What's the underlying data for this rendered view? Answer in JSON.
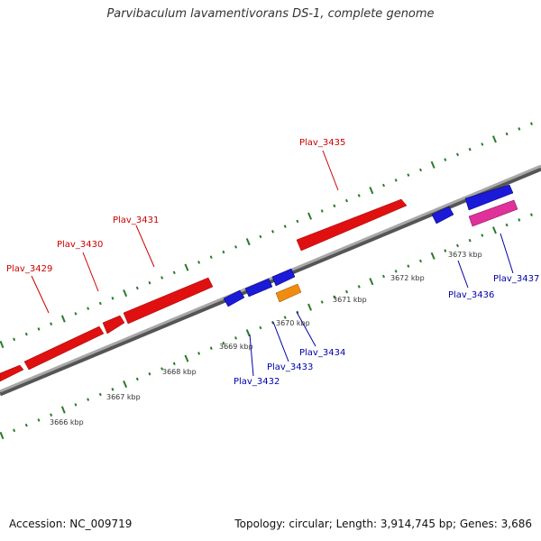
{
  "title": "Parvibaculum lavamentivorans DS-1, complete genome",
  "footer": {
    "accession": "Accession: NC_009719",
    "summary": "Topology: circular; Length: 3,914,745 bp; Genes: 3,686"
  },
  "colors": {
    "backbone": "#8a8a8a",
    "tick": "#2a7a2a",
    "forward_gene": "#e01010",
    "reverse_gene": "#1a1ad8",
    "rna_gene": "#f08c10",
    "pink_gene": "#e0309a",
    "forward_label": "#cc0000",
    "reverse_label": "#0000aa"
  },
  "kbp_labels": [
    "3666 kbp",
    "3667 kbp",
    "3668 kbp",
    "3669 kbp",
    "3670 kbp",
    "3671 kbp",
    "3672 kbp",
    "3673 kbp"
  ],
  "genes": [
    {
      "label": "Plav_3429",
      "strand": "forward"
    },
    {
      "label": "Plav_3430",
      "strand": "forward"
    },
    {
      "label": "Plav_3431",
      "strand": "forward"
    },
    {
      "label": "Plav_3435",
      "strand": "forward"
    },
    {
      "label": "Plav_3432",
      "strand": "reverse"
    },
    {
      "label": "Plav_3433",
      "strand": "reverse"
    },
    {
      "label": "Plav_3434",
      "strand": "reverse"
    },
    {
      "label": "Plav_3436",
      "strand": "reverse"
    },
    {
      "label": "Plav_3437",
      "strand": "reverse"
    }
  ]
}
